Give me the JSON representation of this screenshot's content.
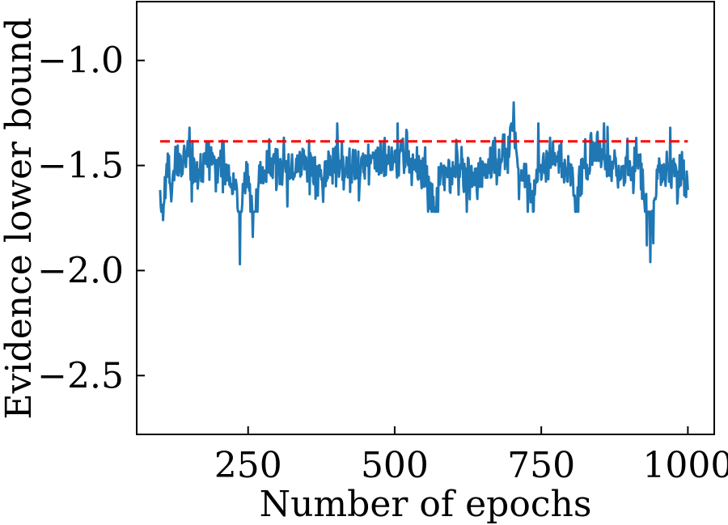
{
  "chart_data": {
    "type": "line",
    "title": "",
    "xlabel": "Number of epochs",
    "ylabel": "Evidence lower bound",
    "xlim": [
      60,
      1045
    ],
    "ylim": [
      -2.78,
      -0.72
    ],
    "xticks": [
      250,
      500,
      750,
      1000
    ],
    "xtick_labels": [
      "250",
      "500",
      "750",
      "1000"
    ],
    "yticks": [
      -1.0,
      -1.5,
      -2.0,
      -2.5
    ],
    "ytick_labels": [
      "−1.0",
      "−1.5",
      "−2.0",
      "−2.5"
    ],
    "grid": false,
    "legend": "none",
    "series": [
      {
        "color": "#1f77b4",
        "style": "solid",
        "x_range": [
          100,
          1000
        ],
        "anchor_points": [
          [
            100,
            -1.6
          ],
          [
            102,
            -1.9
          ],
          [
            105,
            -1.77
          ],
          [
            108,
            -1.63
          ],
          [
            112,
            -1.5
          ],
          [
            118,
            -1.62
          ],
          [
            125,
            -1.45
          ],
          [
            135,
            -1.52
          ],
          [
            145,
            -1.42
          ],
          [
            155,
            -1.5
          ],
          [
            165,
            -1.55
          ],
          [
            180,
            -1.45
          ],
          [
            200,
            -1.5
          ],
          [
            215,
            -1.53
          ],
          [
            230,
            -1.6
          ],
          [
            235,
            -1.96
          ],
          [
            240,
            -1.6
          ],
          [
            250,
            -1.55
          ],
          [
            260,
            -1.8
          ],
          [
            270,
            -1.55
          ],
          [
            290,
            -1.5
          ],
          [
            310,
            -1.55
          ],
          [
            340,
            -1.5
          ],
          [
            370,
            -1.55
          ],
          [
            400,
            -1.48
          ],
          [
            430,
            -1.52
          ],
          [
            460,
            -1.47
          ],
          [
            490,
            -1.5
          ],
          [
            520,
            -1.45
          ],
          [
            550,
            -1.52
          ],
          [
            560,
            -1.6
          ],
          [
            570,
            -1.72
          ],
          [
            580,
            -1.55
          ],
          [
            600,
            -1.5
          ],
          [
            630,
            -1.55
          ],
          [
            660,
            -1.5
          ],
          [
            690,
            -1.45
          ],
          [
            700,
            -1.28
          ],
          [
            710,
            -1.5
          ],
          [
            720,
            -1.55
          ],
          [
            735,
            -1.65
          ],
          [
            750,
            -1.5
          ],
          [
            780,
            -1.48
          ],
          [
            800,
            -1.55
          ],
          [
            810,
            -1.7
          ],
          [
            820,
            -1.5
          ],
          [
            845,
            -1.42
          ],
          [
            860,
            -1.5
          ],
          [
            880,
            -1.55
          ],
          [
            900,
            -1.5
          ],
          [
            920,
            -1.52
          ],
          [
            930,
            -1.75
          ],
          [
            935,
            -1.95
          ],
          [
            940,
            -1.7
          ],
          [
            950,
            -1.5
          ],
          [
            970,
            -1.52
          ],
          [
            990,
            -1.55
          ],
          [
            1000,
            -1.55
          ]
        ],
        "spikes": [
          [
            105,
            -1.76
          ],
          [
            150,
            -1.32
          ],
          [
            236,
            -1.97
          ],
          [
            258,
            -1.84
          ],
          [
            402,
            -1.3
          ],
          [
            505,
            -1.3
          ],
          [
            703,
            -1.2
          ],
          [
            712,
            -1.66
          ],
          [
            745,
            -1.3
          ],
          [
            857,
            -1.3
          ],
          [
            930,
            -1.88
          ],
          [
            936,
            -1.96
          ],
          [
            941,
            -1.87
          ],
          [
            970,
            -1.32
          ],
          [
            997,
            -1.65
          ]
        ],
        "noise_std": 0.055,
        "seed": 7
      },
      {
        "color": "#ff0000",
        "style": "dashed",
        "x": [
          100,
          1000
        ],
        "y": [
          -1.385,
          -1.385
        ]
      }
    ]
  }
}
